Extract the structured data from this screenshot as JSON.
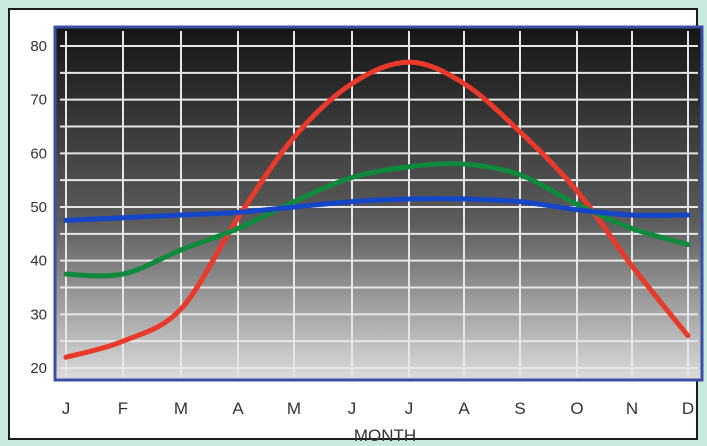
{
  "chart_data": {
    "type": "line",
    "xlabel": "MONTH",
    "ylabel": "",
    "categories": [
      "J",
      "F",
      "M",
      "A",
      "M",
      "J",
      "J",
      "A",
      "S",
      "O",
      "N",
      "D"
    ],
    "y_ticks": [
      20,
      30,
      40,
      50,
      60,
      70,
      80
    ],
    "ylim": [
      18,
      82
    ],
    "grid": true,
    "series": [
      {
        "color": "#e8392a",
        "values": [
          22,
          25,
          31,
          48,
          63,
          73,
          77,
          73,
          64,
          53,
          39,
          26
        ]
      },
      {
        "color": "#0f8a3c",
        "values": [
          37.5,
          37.5,
          42,
          46,
          51,
          55.5,
          57.5,
          58,
          56,
          50.5,
          46,
          43
        ]
      },
      {
        "color": "#1646c8",
        "values": [
          47.5,
          48,
          48.5,
          49,
          50,
          51,
          51.5,
          51.5,
          51,
          49.5,
          48.5,
          48.5
        ]
      }
    ]
  }
}
